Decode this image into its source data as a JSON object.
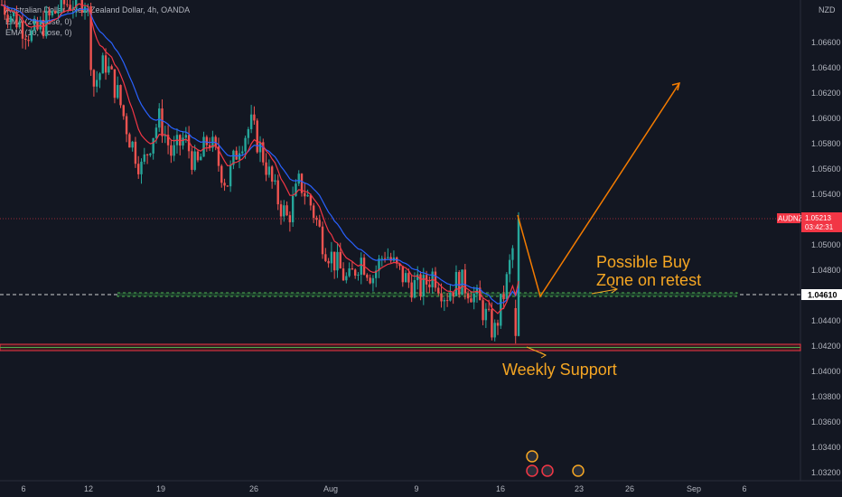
{
  "chart_data": {
    "type": "candlestick",
    "title": "Australian Dollar / New Zealand Dollar, 4h, OANDA",
    "indicators": [
      {
        "label": "EMA (20, close, 0)",
        "color": "#2962ff"
      },
      {
        "label": "EMA (10, close, 0)",
        "color": "#f23645"
      }
    ],
    "y_axis": {
      "currency": "NZD",
      "range": [
        1.031,
        1.07
      ],
      "ticks": [
        "1.06600",
        "1.06400",
        "1.06200",
        "1.06000",
        "1.05800",
        "1.05600",
        "1.05400",
        "1.05000",
        "1.04800",
        "1.04400",
        "1.04200",
        "1.04000",
        "1.03800",
        "1.03600",
        "1.03400",
        "1.03200"
      ]
    },
    "x_axis": {
      "ticks": [
        "6",
        "12",
        "19",
        "26",
        "Aug",
        "9",
        "16",
        "23",
        "26",
        "Sep",
        "6"
      ]
    },
    "symbol_tag": {
      "symbol": "AUDNZD",
      "price": "1.05213",
      "countdown": "03:42:31"
    },
    "crosshair_price": "1.04610",
    "series_close_path": [
      [
        0.0,
        1.069
      ],
      [
        0.05,
        1.0665
      ],
      [
        0.1,
        1.069
      ],
      [
        0.14,
        1.0695
      ],
      [
        0.15,
        1.0625
      ],
      [
        0.17,
        1.0645
      ],
      [
        0.19,
        1.062
      ],
      [
        0.21,
        1.0585
      ],
      [
        0.23,
        1.056
      ],
      [
        0.25,
        1.059
      ],
      [
        0.26,
        1.06
      ],
      [
        0.28,
        1.057
      ],
      [
        0.3,
        1.0585
      ],
      [
        0.32,
        1.056
      ],
      [
        0.34,
        1.0585
      ],
      [
        0.36,
        1.056
      ],
      [
        0.37,
        1.0548
      ],
      [
        0.39,
        1.058
      ],
      [
        0.41,
        1.0595
      ],
      [
        0.43,
        1.057
      ],
      [
        0.45,
        1.054
      ],
      [
        0.47,
        1.052
      ],
      [
        0.49,
        1.055
      ],
      [
        0.51,
        1.053
      ],
      [
        0.53,
        1.05
      ],
      [
        0.55,
        1.0485
      ],
      [
        0.57,
        1.047
      ],
      [
        0.59,
        1.049
      ],
      [
        0.61,
        1.0475
      ],
      [
        0.63,
        1.0495
      ],
      [
        0.65,
        1.048
      ],
      [
        0.67,
        1.047
      ],
      [
        0.69,
        1.0465
      ],
      [
        0.71,
        1.0478
      ],
      [
        0.73,
        1.046
      ],
      [
        0.75,
        1.0472
      ],
      [
        0.77,
        1.0465
      ],
      [
        0.79,
        1.045
      ],
      [
        0.81,
        1.043
      ],
      [
        0.83,
        1.047
      ],
      [
        0.85,
        1.0521
      ]
    ],
    "levels": [
      {
        "name": "buy-zone",
        "price": 1.0461,
        "color": "#4caf50"
      },
      {
        "name": "weekly-support",
        "price": 1.0419,
        "color": "#f23645"
      }
    ],
    "annotations": [
      {
        "text": "Possible Buy",
        "line": 1
      },
      {
        "text": "Zone on retest",
        "line": 2
      },
      {
        "text": "Weekly Support",
        "line": 1
      }
    ]
  }
}
